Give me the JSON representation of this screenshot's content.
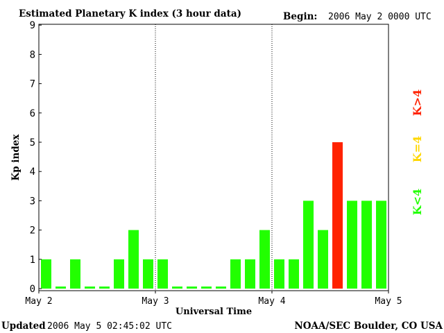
{
  "header": {
    "title": "Estimated Planetary K index (3 hour data)",
    "begin_label": "Begin:",
    "begin_value": "2006 May 2 0000 UTC"
  },
  "footer": {
    "updated_label": "Updated",
    "updated_value": "2006 May  5 02:45:02 UTC",
    "source": "NOAA/SEC Boulder, CO USA"
  },
  "legend": {
    "less": "K<4",
    "equal": "K=4",
    "greater": "K>4"
  },
  "colors": {
    "low": "#22ff00",
    "mid": "#ffd700",
    "high": "#ff2200"
  },
  "chart_data": {
    "type": "bar",
    "title": "Estimated Planetary K index (3 hour data)",
    "xlabel": "Universal Time",
    "ylabel": "Kp index",
    "ylim": [
      0,
      9
    ],
    "yticks": [
      "0",
      "1",
      "2",
      "3",
      "4",
      "5",
      "6",
      "7",
      "8",
      "9"
    ],
    "xticks": [
      "May 2",
      "May 3",
      "May 4",
      "May 5"
    ],
    "grid": "vertical dotted lines at day boundaries",
    "categories": [
      "May 2 00",
      "May 2 03",
      "May 2 06",
      "May 2 09",
      "May 2 12",
      "May 2 15",
      "May 2 18",
      "May 2 21",
      "May 3 00",
      "May 3 03",
      "May 3 06",
      "May 3 09",
      "May 3 12",
      "May 3 15",
      "May 3 18",
      "May 3 21",
      "May 4 00",
      "May 4 03",
      "May 4 06",
      "May 4 09",
      "May 4 12",
      "May 4 15",
      "May 4 18",
      "May 4 21"
    ],
    "values": [
      1,
      0,
      1,
      0,
      0,
      1,
      2,
      1,
      1,
      0,
      0,
      0,
      0,
      1,
      1,
      2,
      1,
      1,
      3,
      2,
      5,
      3,
      3,
      3
    ]
  }
}
